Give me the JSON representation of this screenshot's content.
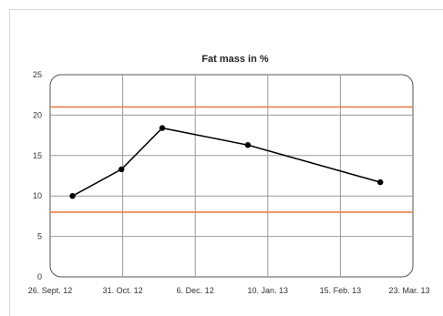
{
  "chart_data": {
    "type": "line",
    "title": "Fat mass in %",
    "xlabel": "",
    "ylabel": "",
    "ylim": [
      0,
      25
    ],
    "yticks": [
      0,
      5,
      10,
      15,
      20,
      25
    ],
    "xticks": [
      "26. Sept. 12",
      "31. Oct. 12",
      "6. Dec. 12",
      "10. Jan. 13",
      "15. Feb. 13",
      "23. Mar. 13"
    ],
    "xlim": [
      "2012-09-26",
      "2013-03-23"
    ],
    "grid": true,
    "series": [
      {
        "x": [
          "2012-10-07",
          "2012-10-31",
          "2012-11-20",
          "2013-01-01",
          "2013-03-07"
        ],
        "y": [
          10.0,
          13.3,
          18.4,
          16.3,
          11.7
        ],
        "color": "#000000"
      }
    ],
    "reference_lines": [
      {
        "y": 21,
        "color": "#e8743b"
      },
      {
        "y": 8,
        "color": "#e8743b"
      }
    ]
  }
}
